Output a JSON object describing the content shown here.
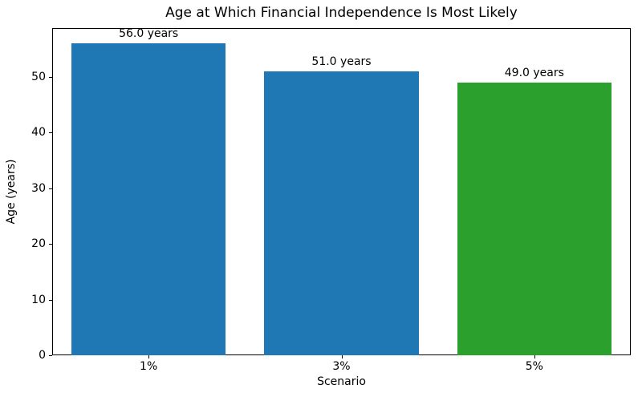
{
  "chart_data": {
    "type": "bar",
    "title": "Age at Which Financial Independence Is Most Likely",
    "xlabel": "Scenario",
    "ylabel": "Age (years)",
    "categories": [
      "1%",
      "3%",
      "5%"
    ],
    "values": [
      56.0,
      51.0,
      49.0
    ],
    "bar_labels": [
      "56.0 years",
      "51.0 years",
      "49.0 years"
    ],
    "bar_colors": [
      "#1f77b4",
      "#1f77b4",
      "#2ca02c"
    ],
    "ylim": [
      0,
      58.8
    ],
    "yticks": [
      0,
      10,
      20,
      30,
      40,
      50
    ],
    "bar_width_fraction": 0.8,
    "grid": false,
    "legend_position": "none",
    "spine_color": "#000000",
    "background_color": "#ffffff"
  }
}
